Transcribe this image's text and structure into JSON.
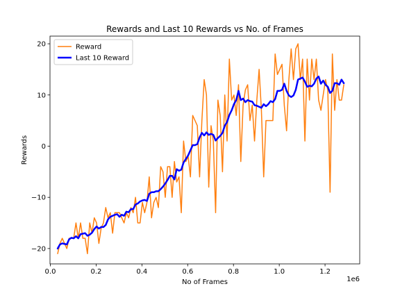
{
  "chart_data": {
    "type": "line",
    "title": "Rewards and Last 10 Rewards vs No. of Frames",
    "xlabel": "No of Frames",
    "ylabel": "Rewards",
    "x_offset_label": "1e6",
    "xlim": [
      -0.0015,
      1.3515
    ],
    "ylim": [
      -23,
      21.5
    ],
    "x_ticks": [
      0.0,
      0.2,
      0.4,
      0.6,
      0.8,
      1.0,
      1.2
    ],
    "x_tick_labels": [
      "0.0",
      "0.2",
      "0.4",
      "0.6",
      "0.8",
      "1.0",
      "1.2"
    ],
    "y_ticks": [
      -20,
      -10,
      0,
      10,
      20
    ],
    "y_tick_labels": [
      "−20",
      "−10",
      "0",
      "10",
      "20"
    ],
    "grid": false,
    "legend_position": "top-left",
    "colors": {
      "reward": "#ff7f0e",
      "last10": "#0000ff"
    },
    "series": [
      {
        "name": "Reward",
        "key": "reward",
        "x": [
          0.032,
          0.042,
          0.052,
          0.062,
          0.072,
          0.082,
          0.092,
          0.102,
          0.112,
          0.122,
          0.132,
          0.142,
          0.152,
          0.162,
          0.172,
          0.182,
          0.192,
          0.202,
          0.212,
          0.222,
          0.232,
          0.242,
          0.252,
          0.262,
          0.272,
          0.282,
          0.292,
          0.302,
          0.312,
          0.322,
          0.332,
          0.342,
          0.352,
          0.362,
          0.372,
          0.382,
          0.392,
          0.402,
          0.412,
          0.422,
          0.432,
          0.442,
          0.452,
          0.462,
          0.472,
          0.482,
          0.492,
          0.502,
          0.512,
          0.522,
          0.532,
          0.542,
          0.552,
          0.562,
          0.572,
          0.582,
          0.592,
          0.602,
          0.612,
          0.622,
          0.632,
          0.642,
          0.652,
          0.662,
          0.672,
          0.682,
          0.692,
          0.702,
          0.712,
          0.722,
          0.732,
          0.742,
          0.752,
          0.762,
          0.772,
          0.782,
          0.792,
          0.802,
          0.812,
          0.822,
          0.832,
          0.842,
          0.852,
          0.862,
          0.872,
          0.882,
          0.892,
          0.902,
          0.912,
          0.922,
          0.932,
          0.942,
          0.952,
          0.962,
          0.972,
          0.982,
          0.992,
          1.002,
          1.012,
          1.022,
          1.032,
          1.042,
          1.052,
          1.062,
          1.072,
          1.082,
          1.092,
          1.102,
          1.112,
          1.122,
          1.132,
          1.142,
          1.152,
          1.162,
          1.172,
          1.182,
          1.192,
          1.202,
          1.212,
          1.222,
          1.232,
          1.242,
          1.252,
          1.262,
          1.272,
          1.282
        ],
        "values": [
          -21,
          -19,
          -18,
          -19,
          -20,
          -18,
          -18,
          -18,
          -15,
          -18,
          -15,
          -18,
          -18,
          -21,
          -15,
          -17,
          -14,
          -15,
          -19,
          -16,
          -15,
          -12,
          -14,
          -13,
          -17,
          -13,
          -13,
          -13,
          -14,
          -15,
          -13,
          -14,
          -12,
          -13,
          -10,
          -15,
          -15,
          -11,
          -13,
          -11,
          -6,
          -14,
          -11,
          -10,
          -12,
          -4,
          -5,
          -10,
          -4,
          -4,
          -10,
          -3,
          -7,
          -6,
          -13,
          1,
          -3,
          -2,
          -6,
          6,
          5,
          4,
          -6,
          5,
          13,
          10,
          -8,
          4,
          1,
          -13,
          9,
          6,
          -5,
          10,
          1,
          17,
          9,
          10,
          6,
          12,
          -3,
          8,
          11,
          12,
          5,
          8,
          1,
          9,
          15,
          7,
          -6,
          5,
          5,
          5,
          5,
          18,
          14,
          15,
          16,
          8,
          3,
          13,
          19,
          13,
          19,
          20,
          13,
          17,
          1,
          17,
          9,
          17,
          13,
          17,
          9,
          7,
          10,
          13,
          11,
          -9,
          18,
          7,
          13,
          9,
          9,
          12
        ]
      },
      {
        "name": "Last 10 Reward",
        "key": "last10",
        "x": [
          0.032,
          0.042,
          0.052,
          0.062,
          0.072,
          0.082,
          0.092,
          0.102,
          0.112,
          0.122,
          0.132,
          0.142,
          0.152,
          0.162,
          0.172,
          0.182,
          0.192,
          0.202,
          0.212,
          0.222,
          0.232,
          0.242,
          0.252,
          0.262,
          0.272,
          0.282,
          0.292,
          0.302,
          0.312,
          0.322,
          0.332,
          0.342,
          0.352,
          0.362,
          0.372,
          0.382,
          0.392,
          0.402,
          0.412,
          0.422,
          0.432,
          0.442,
          0.452,
          0.462,
          0.472,
          0.482,
          0.492,
          0.502,
          0.512,
          0.522,
          0.532,
          0.542,
          0.552,
          0.562,
          0.572,
          0.582,
          0.592,
          0.602,
          0.612,
          0.622,
          0.632,
          0.642,
          0.652,
          0.662,
          0.672,
          0.682,
          0.692,
          0.702,
          0.712,
          0.722,
          0.732,
          0.742,
          0.752,
          0.762,
          0.772,
          0.782,
          0.792,
          0.802,
          0.812,
          0.822,
          0.832,
          0.842,
          0.852,
          0.862,
          0.872,
          0.882,
          0.892,
          0.902,
          0.912,
          0.922,
          0.932,
          0.942,
          0.952,
          0.962,
          0.972,
          0.982,
          0.992,
          1.002,
          1.012,
          1.022,
          1.032,
          1.042,
          1.052,
          1.062,
          1.072,
          1.082,
          1.092,
          1.102,
          1.112,
          1.122,
          1.132,
          1.142,
          1.152,
          1.162,
          1.172,
          1.182,
          1.192,
          1.202,
          1.212,
          1.222,
          1.232,
          1.242,
          1.252,
          1.262,
          1.272,
          1.282
        ],
        "values": [
          -20,
          -19.2,
          -19,
          -19.1,
          -19.2,
          -18.2,
          -17.9,
          -18,
          -17.6,
          -18,
          -17.2,
          -17.1,
          -17,
          -17.5,
          -17.3,
          -16.9,
          -16.2,
          -15.7,
          -16.1,
          -15.8,
          -15.8,
          -15.4,
          -14.3,
          -13.8,
          -13.6,
          -13.4,
          -13.3,
          -13.8,
          -13.4,
          -13.6,
          -12.8,
          -12.9,
          -12.3,
          -12.3,
          -11.4,
          -11.2,
          -10.8,
          -10.6,
          -10.5,
          -10.7,
          -9.3,
          -9,
          -9,
          -8.8,
          -8.8,
          -8.4,
          -7.9,
          -7.3,
          -6.6,
          -5.8,
          -5.8,
          -6.5,
          -4.5,
          -4.8,
          -4.6,
          -3.2,
          -2.5,
          -1.8,
          -0.8,
          0.2,
          0.2,
          0.4,
          1.7,
          2.6,
          2.1,
          2.7,
          2.2,
          2.4,
          2.2,
          1.1,
          1.6,
          2,
          2.6,
          4,
          4.7,
          6.1,
          7,
          8.2,
          9,
          10.8,
          9,
          9.3,
          8.6,
          9,
          8.8,
          8.7,
          8,
          7.9,
          7.7,
          7.5,
          8.2,
          7.8,
          8.2,
          8.8,
          8.6,
          9.2,
          10.8,
          10.8,
          11,
          12.2,
          10.8,
          9.9,
          9.6,
          9.9,
          11,
          13,
          13.2,
          13.4,
          12.6,
          11.6,
          11.8,
          11.7,
          12.2,
          13.2,
          13.6,
          12.2,
          12.8,
          12,
          11.6,
          10.4,
          10.8,
          12.3,
          12.3,
          12,
          13,
          12.3
        ]
      }
    ]
  }
}
